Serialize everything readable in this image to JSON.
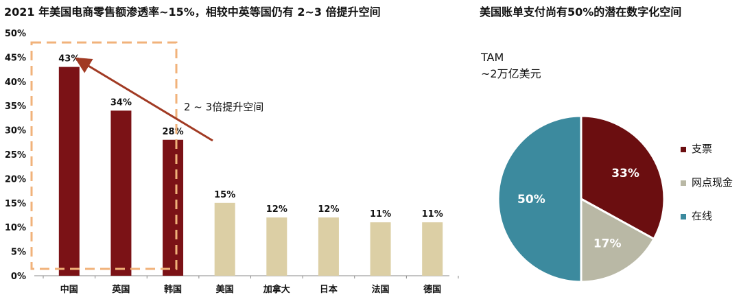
{
  "left_title": "2021 年美国电商零售额渗透率~15%，相较中英等国仍有 2~3 倍提升空间",
  "right_title": "美国账单支付尚有50%的潜在数字化空间",
  "annotation": "2 ~ 3倍提升空间",
  "tam_line1": "TAM",
  "tam_line2": "~2万亿美元",
  "colors": {
    "highlight_bar": "#7b1216",
    "other_bar": "#dccfa5",
    "arrow": "#a13a23",
    "dashed_box": "#f1b27a",
    "pie": [
      "#6b0e10",
      "#b9b8a5",
      "#3c8a9e"
    ]
  },
  "chart_data": [
    {
      "type": "bar",
      "title": "2021 年美国电商零售额渗透率~15%，相较中英等国仍有 2~3 倍提升空间",
      "categories": [
        "中国",
        "英国",
        "韩国",
        "美国",
        "加拿大",
        "日本",
        "法国",
        "德国"
      ],
      "values": [
        43,
        34,
        28,
        15,
        12,
        12,
        11,
        11
      ],
      "data_labels": [
        "43%",
        "34%",
        "28%",
        "15%",
        "12%",
        "12%",
        "11%",
        "11%"
      ],
      "highlighted": [
        "中国",
        "英国",
        "韩国"
      ],
      "ylim": [
        0,
        50
      ],
      "yticks": [
        "0%",
        "5%",
        "10%",
        "15%",
        "20%",
        "25%",
        "30%",
        "35%",
        "40%",
        "45%",
        "50%"
      ],
      "annotation": "2 ~ 3倍提升空间"
    },
    {
      "type": "pie",
      "title": "美国账单支付尚有50%的潜在数字化空间",
      "labels": [
        "支票",
        "网点现金",
        "在线"
      ],
      "values": [
        33,
        17,
        50
      ],
      "data_labels": [
        "33%",
        "17%",
        "50%"
      ],
      "legend_position": "right"
    }
  ]
}
